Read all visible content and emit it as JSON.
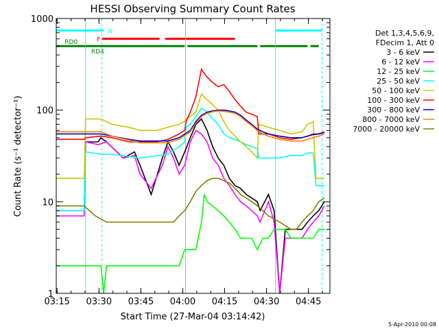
{
  "chart_data": {
    "type": "line",
    "title": "HESSI Observing Summary Count Rates",
    "xlabel": "Start Time (27-Mar-04 03:14:42)",
    "ylabel": "Count Rate (s⁻¹ detector⁻¹)",
    "y_scale": "log",
    "ylim": [
      1,
      1000
    ],
    "xlim": [
      0,
      98
    ],
    "x_tick_labels": [
      "03:15",
      "03:30",
      "03:45",
      "04:00",
      "04:15",
      "04:30",
      "04:45"
    ],
    "x_tick_minutes": [
      0.3,
      15.3,
      30.3,
      45.3,
      60.3,
      75.3,
      90.3
    ],
    "y_tick_labels": [
      "1",
      "10",
      "100",
      "1000"
    ],
    "legend_header": [
      "Det 1,3,4,5,6,9,",
      "FDecim 1, Att 0"
    ],
    "footer_text": "5-Apr-2010 00:08",
    "flags": [
      {
        "name": "N",
        "color": "#00ffff",
        "y": 740,
        "segments": [
          [
            0,
            17
          ],
          [
            78.5,
            95
          ]
        ]
      },
      {
        "name": "F",
        "color": "#ff0000",
        "y": 600,
        "segments": [
          [
            16.5,
            37
          ],
          [
            39,
            64
          ]
        ]
      },
      {
        "name": "RD0",
        "color": "#008000",
        "y": 500,
        "segments": [
          [
            0,
            11
          ],
          [
            10.5,
            46
          ],
          [
            47,
            72
          ],
          [
            73,
            90
          ],
          [
            91,
            94
          ]
        ]
      },
      {
        "name": "RD4",
        "color": "#008000",
        "y": 500,
        "segments": []
      }
    ],
    "series": [
      {
        "name": "3 - 6 keV",
        "color": "#000000",
        "x": [
          0,
          4,
          10,
          10.5,
          15,
          16,
          18,
          24,
          28,
          30,
          34,
          38,
          40,
          42,
          44,
          46,
          48,
          50,
          52,
          54,
          56,
          58,
          60,
          62,
          64,
          66,
          68,
          70,
          72,
          73,
          76,
          78,
          80,
          82,
          86,
          88,
          90,
          92,
          94,
          96
        ],
        "y": [
          8,
          8,
          8,
          45,
          45,
          50,
          45,
          30,
          35,
          25,
          12,
          30,
          45,
          35,
          25,
          35,
          50,
          70,
          80,
          60,
          40,
          30,
          25,
          18,
          15,
          14,
          12,
          11,
          10,
          8,
          12,
          8,
          1,
          5,
          5,
          5,
          6,
          7,
          8,
          10
        ]
      },
      {
        "name": "6 - 12 keV",
        "color": "#ff00ff",
        "x": [
          0,
          10,
          10.5,
          15,
          18,
          24,
          28,
          30,
          34,
          38,
          40,
          42,
          44,
          46,
          48,
          50,
          52,
          54,
          56,
          58,
          60,
          62,
          64,
          66,
          68,
          70,
          72,
          73,
          76,
          78,
          80,
          82,
          86,
          88,
          90,
          92,
          94,
          96
        ],
        "y": [
          7,
          7,
          45,
          42,
          45,
          30,
          32,
          20,
          14,
          25,
          40,
          30,
          20,
          25,
          45,
          60,
          55,
          45,
          30,
          25,
          18,
          15,
          12,
          10,
          9,
          8,
          7,
          6,
          10,
          6,
          1,
          4,
          4,
          4,
          5,
          6,
          7,
          9
        ]
      },
      {
        "name": "12 - 25 keV",
        "color": "#00ff00",
        "x": [
          0,
          10,
          16,
          17,
          18,
          22,
          26,
          30,
          34,
          38,
          42,
          44,
          46,
          48,
          50,
          52,
          53,
          54,
          56,
          58,
          60,
          62,
          64,
          66,
          68,
          70,
          72,
          74,
          76,
          78,
          80,
          82,
          84,
          86,
          88,
          90,
          92,
          94,
          96
        ],
        "y": [
          2,
          2,
          2,
          1,
          2,
          2,
          2,
          2,
          2,
          2,
          2,
          2,
          3,
          3,
          3,
          6,
          12,
          10,
          9,
          8,
          7,
          6,
          5,
          4,
          4,
          4,
          3,
          4,
          4,
          5,
          5,
          5,
          4,
          4,
          4,
          4,
          4,
          5,
          5
        ]
      },
      {
        "name": "25 - 50 keV",
        "color": "#00ffff",
        "x": [
          0,
          10,
          10.5,
          16,
          20,
          30,
          40,
          44,
          46,
          46.5,
          48,
          50,
          52,
          54,
          56,
          58,
          60,
          62,
          64,
          66,
          68,
          70,
          72,
          72.5,
          76,
          80,
          84,
          88,
          90,
          92,
          93,
          94,
          96
        ],
        "y": [
          8,
          8,
          35,
          33,
          33,
          30,
          33,
          40,
          45,
          65,
          70,
          85,
          105,
          95,
          80,
          70,
          55,
          50,
          48,
          45,
          42,
          40,
          38,
          30,
          30,
          30,
          32,
          32,
          34,
          34,
          15,
          15,
          15
        ]
      },
      {
        "name": "50 - 100 keV",
        "color": "#c8c800",
        "x": [
          0,
          10,
          10.5,
          16,
          20,
          26,
          30,
          36,
          40,
          44,
          46,
          46.5,
          48,
          50,
          52,
          54,
          56,
          58,
          60,
          62,
          64,
          66,
          68,
          70,
          72,
          72.5,
          76,
          80,
          84,
          88,
          90,
          92,
          93,
          94,
          96
        ],
        "y": [
          18,
          18,
          80,
          80,
          70,
          65,
          60,
          60,
          65,
          70,
          75,
          80,
          85,
          95,
          150,
          130,
          115,
          100,
          75,
          60,
          52,
          45,
          40,
          35,
          30,
          70,
          65,
          60,
          55,
          58,
          70,
          75,
          18,
          18,
          18
        ]
      },
      {
        "name": "100 - 300 keV",
        "color": "#ff0000",
        "x": [
          0,
          10,
          10.5,
          16,
          20,
          26,
          30,
          36,
          40,
          44,
          46,
          46.5,
          48,
          50,
          52,
          53,
          54,
          56,
          58,
          60,
          62,
          64,
          66,
          68,
          70,
          72,
          72.5,
          76,
          80,
          84,
          88,
          90,
          92,
          93,
          94,
          96
        ],
        "y": [
          48,
          48,
          50,
          52,
          50,
          45,
          45,
          45,
          48,
          55,
          60,
          75,
          95,
          140,
          280,
          250,
          230,
          200,
          180,
          190,
          160,
          130,
          110,
          95,
          90,
          85,
          55,
          55,
          50,
          48,
          50,
          52,
          55,
          55,
          55,
          58
        ]
      },
      {
        "name": "300 - 800 keV",
        "color": "#0000c0",
        "x": [
          0,
          10,
          16,
          20,
          26,
          30,
          36,
          40,
          44,
          48,
          50,
          52,
          54,
          56,
          58,
          60,
          62,
          64,
          66,
          68,
          70,
          72,
          74,
          76,
          80,
          84,
          88,
          90,
          92,
          94,
          96
        ],
        "y": [
          55,
          55,
          55,
          52,
          48,
          46,
          46,
          46,
          50,
          60,
          75,
          88,
          95,
          98,
          100,
          100,
          98,
          95,
          88,
          78,
          70,
          62,
          58,
          55,
          52,
          50,
          50,
          52,
          54,
          55,
          57
        ]
      },
      {
        "name": "800 - 7000 keV",
        "color": "#ff8000",
        "x": [
          0,
          10,
          16,
          20,
          26,
          30,
          36,
          40,
          44,
          48,
          50,
          52,
          54,
          56,
          58,
          60,
          62,
          64,
          66,
          68,
          70,
          72,
          74,
          76,
          80,
          84,
          88,
          90,
          92,
          94,
          96
        ],
        "y": [
          58,
          58,
          58,
          52,
          47,
          44,
          44,
          44,
          48,
          58,
          72,
          85,
          92,
          96,
          98,
          97,
          95,
          92,
          85,
          75,
          68,
          60,
          55,
          52,
          48,
          46,
          46,
          48,
          50,
          52,
          55
        ]
      },
      {
        "name": "7000 - 20000 keV",
        "color": "#808000",
        "x": [
          0,
          10,
          14,
          18,
          22,
          26,
          30,
          34,
          38,
          42,
          44,
          46,
          48,
          50,
          52,
          54,
          56,
          58,
          60,
          62,
          64,
          66,
          68,
          70,
          72,
          74,
          76,
          80,
          84,
          86,
          88,
          90,
          92,
          94,
          96
        ],
        "y": [
          9,
          9,
          7,
          6,
          6,
          6,
          6,
          6,
          6,
          6,
          7,
          8,
          10,
          13,
          15,
          17,
          18,
          18,
          17,
          16,
          14,
          12,
          11,
          10,
          9,
          8,
          7,
          6,
          5,
          5,
          6,
          7,
          8,
          10,
          11
        ]
      }
    ],
    "vertical_markers": [
      {
        "x": 10.5,
        "color": "#00ffff",
        "style": "solid"
      },
      {
        "x": 16.3,
        "color": "#00ffff",
        "style": "dashed"
      },
      {
        "x": 46.3,
        "color": "#00ffff",
        "style": "solid"
      },
      {
        "x": 78.5,
        "color": "#00ffff",
        "style": "solid"
      },
      {
        "x": 95.2,
        "color": "#00ffff",
        "style": "dashed"
      }
    ]
  }
}
